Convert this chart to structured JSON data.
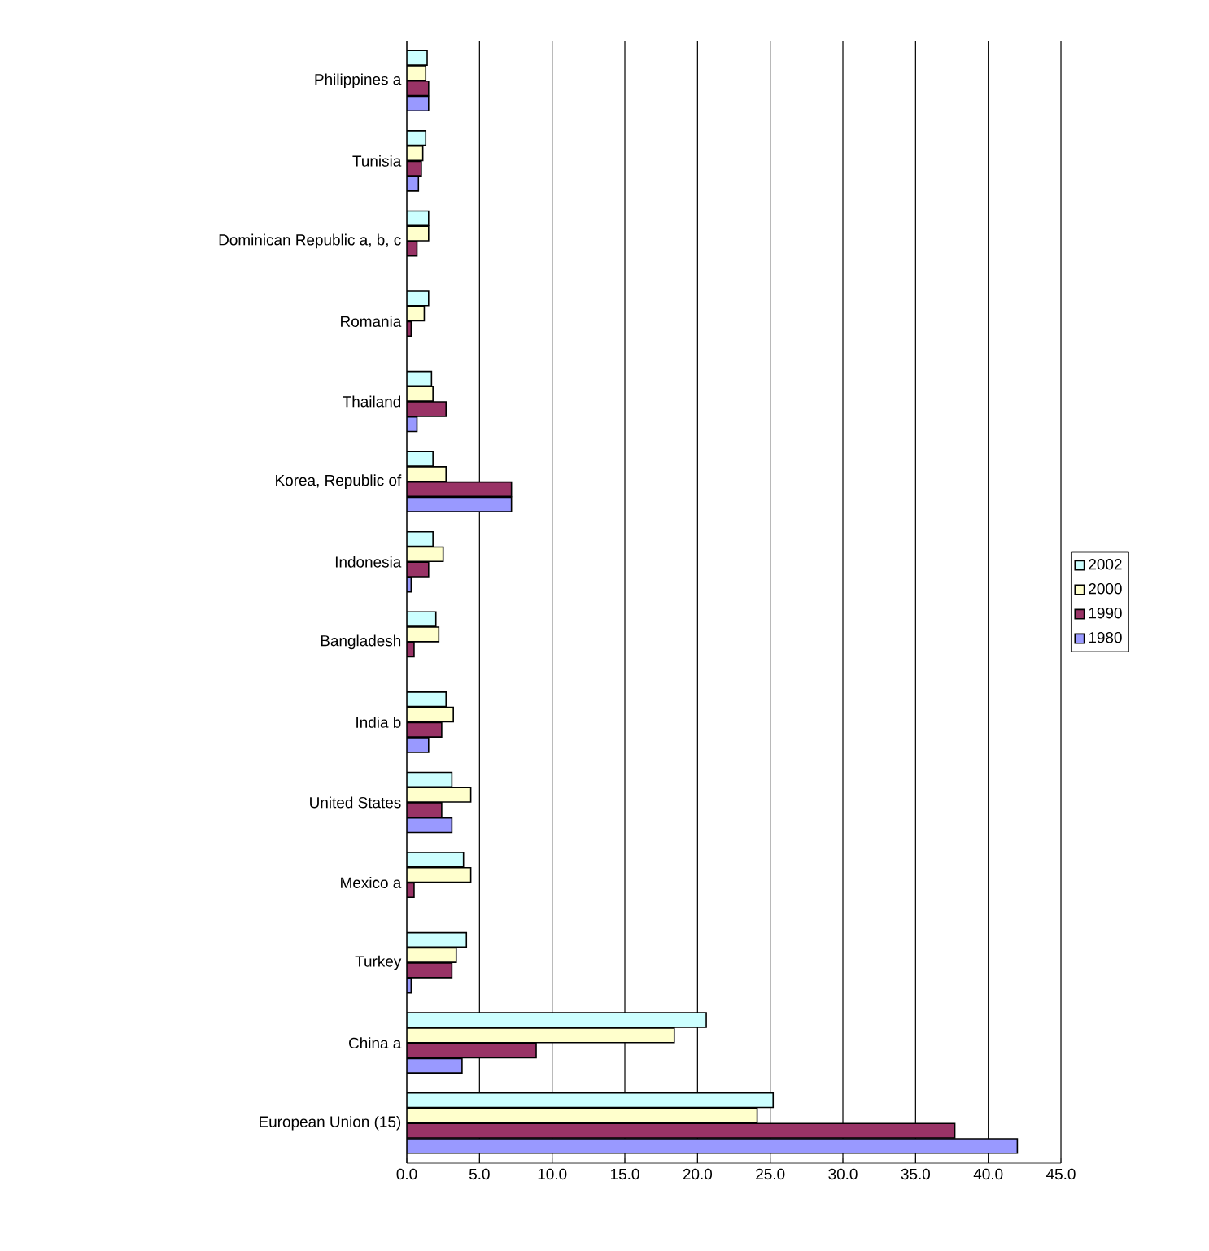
{
  "chart_data": {
    "type": "bar",
    "orientation": "horizontal",
    "categories": [
      "Philippines a",
      "Tunisia",
      "Dominican Republic a, b, c",
      "Romania",
      "Thailand",
      "Korea, Republic of",
      "Indonesia",
      "Bangladesh",
      "India b",
      "United States",
      "Mexico a",
      "Turkey",
      "China a",
      "European Union (15)"
    ],
    "series": [
      {
        "name": "2002",
        "color": "#ccffff",
        "values": [
          1.4,
          1.3,
          1.5,
          1.5,
          1.7,
          1.8,
          1.8,
          2.0,
          2.7,
          3.1,
          3.9,
          4.1,
          20.6,
          25.2
        ]
      },
      {
        "name": "2000",
        "color": "#ffffcc",
        "values": [
          1.3,
          1.1,
          1.5,
          1.2,
          1.8,
          2.7,
          2.5,
          2.2,
          3.2,
          4.4,
          4.4,
          3.4,
          18.4,
          24.1
        ]
      },
      {
        "name": "1990",
        "color": "#993366",
        "values": [
          1.5,
          1.0,
          0.7,
          0.3,
          2.7,
          7.2,
          1.5,
          0.5,
          2.4,
          2.4,
          0.5,
          3.1,
          8.9,
          37.7
        ]
      },
      {
        "name": "1980",
        "color": "#9999ff",
        "values": [
          1.5,
          0.8,
          null,
          null,
          0.7,
          7.2,
          0.3,
          null,
          1.5,
          3.1,
          null,
          0.3,
          3.8,
          42.0
        ]
      }
    ],
    "xlim": [
      0,
      45
    ],
    "xticks": [
      {
        "value": 0,
        "label": "0.0"
      },
      {
        "value": 5,
        "label": "5.0"
      },
      {
        "value": 10,
        "label": "10.0"
      },
      {
        "value": 15,
        "label": "15.0"
      },
      {
        "value": 20,
        "label": "20.0"
      },
      {
        "value": 25,
        "label": "25.0"
      },
      {
        "value": 30,
        "label": "30.0"
      },
      {
        "value": 35,
        "label": "35.0"
      },
      {
        "value": 40,
        "label": "40.0"
      },
      {
        "value": 45,
        "label": "45.0"
      }
    ],
    "grid": "x",
    "legend": "right"
  }
}
